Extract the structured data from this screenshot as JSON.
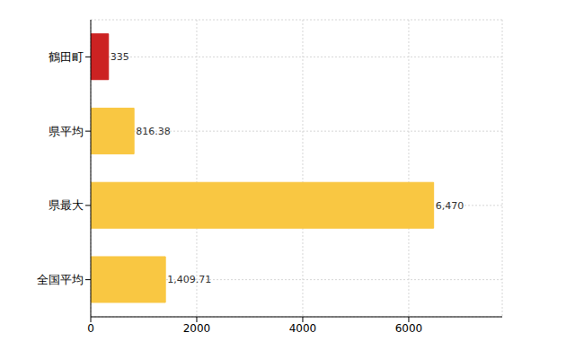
{
  "chart_data": {
    "type": "bar",
    "orientation": "horizontal",
    "categories": [
      "鶴田町",
      "県平均",
      "県最大",
      "全国平均"
    ],
    "values": [
      335,
      816.38,
      6470,
      1409.71
    ],
    "value_labels": [
      "335",
      "816.38",
      "6,470",
      "1,409.71"
    ],
    "colors": [
      "#cc2222",
      "#f9c742",
      "#f9c742",
      "#f9c742"
    ],
    "xlim": [
      0,
      7764
    ],
    "xticks": [
      0,
      2000,
      4000,
      6000
    ],
    "grid": true,
    "data_labels": true
  }
}
